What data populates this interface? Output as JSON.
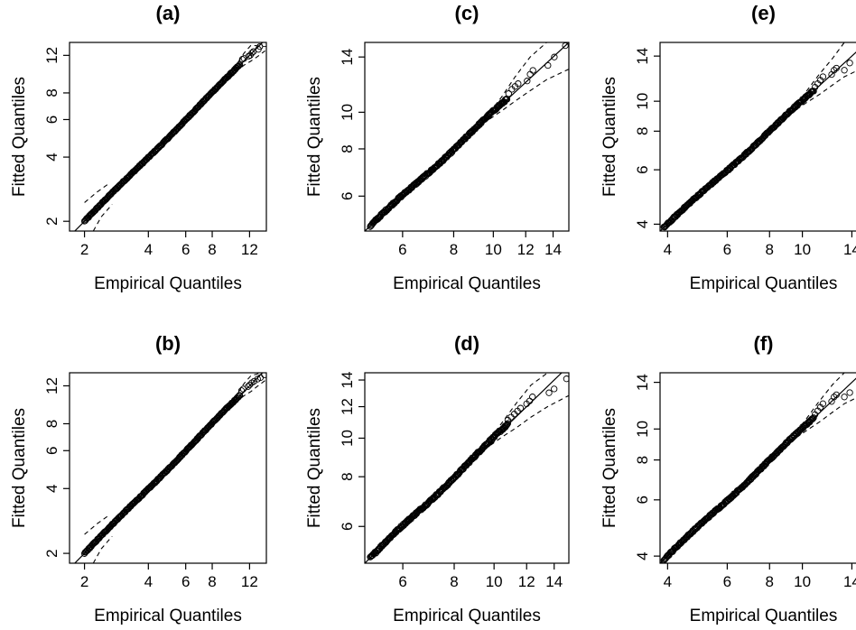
{
  "chart_data": [
    {
      "type": "scatter",
      "title": "(a)",
      "xlabel": "Empirical Quantiles",
      "ylabel": "Fitted Quantiles",
      "xlim": [
        1.7,
        14.4
      ],
      "ylim": [
        1.8,
        13.8
      ],
      "xticks": [
        2,
        4,
        6,
        8,
        12
      ],
      "yticks": [
        2,
        4,
        6,
        8,
        12
      ],
      "x_log_scale": true,
      "y_log_scale": true,
      "grid": false,
      "x_min": 2.0,
      "x_max": 14.1,
      "upper_band": [
        [
          9.6,
          9.7
        ],
        [
          10.5,
          11.0
        ],
        [
          11.3,
          12.3
        ],
        [
          12.2,
          13.4
        ],
        [
          13.0,
          13.3
        ],
        [
          14.2,
          14.2
        ]
      ],
      "lower_band": [
        [
          9.6,
          9.5
        ],
        [
          10.5,
          10.2
        ],
        [
          11.3,
          10.8
        ],
        [
          12.2,
          11.3
        ],
        [
          13.0,
          11.8
        ],
        [
          14.2,
          12.6
        ]
      ],
      "low_band_upper": [
        [
          2.0,
          2.45
        ],
        [
          2.3,
          2.75
        ],
        [
          2.6,
          3.0
        ]
      ],
      "low_band_lower": [
        [
          2.2,
          1.8
        ],
        [
          2.4,
          2.1
        ],
        [
          2.7,
          2.4
        ]
      ],
      "high_points": [
        [
          11.1,
          11.5
        ],
        [
          11.3,
          11.6
        ],
        [
          11.9,
          11.9
        ],
        [
          12.1,
          12.0
        ],
        [
          12.3,
          12.3
        ],
        [
          12.5,
          12.5
        ],
        [
          13.2,
          12.8
        ],
        [
          13.4,
          13.2
        ],
        [
          14.1,
          13.6
        ]
      ]
    },
    {
      "type": "scatter",
      "title": "(b)",
      "xlabel": "Empirical Quantiles",
      "ylabel": "Fitted Quantiles",
      "xlim": [
        1.7,
        14.4
      ],
      "ylim": [
        1.8,
        13.8
      ],
      "xticks": [
        2,
        4,
        6,
        8,
        12
      ],
      "yticks": [
        2,
        4,
        6,
        8,
        12
      ],
      "x_log_scale": true,
      "y_log_scale": true,
      "grid": false,
      "x_min": 2.0,
      "x_max": 14.1,
      "upper_band": [
        [
          9.6,
          9.7
        ],
        [
          10.5,
          11.0
        ],
        [
          11.3,
          12.3
        ],
        [
          12.2,
          13.4
        ],
        [
          13.0,
          13.6
        ],
        [
          14.2,
          14.2
        ]
      ],
      "lower_band": [
        [
          9.6,
          9.5
        ],
        [
          10.5,
          10.2
        ],
        [
          11.3,
          10.8
        ],
        [
          12.2,
          11.3
        ],
        [
          13.0,
          11.9
        ],
        [
          14.2,
          12.7
        ]
      ],
      "low_band_upper": [
        [
          2.0,
          2.45
        ],
        [
          2.3,
          2.75
        ],
        [
          2.6,
          3.0
        ]
      ],
      "low_band_lower": [
        [
          2.2,
          1.8
        ],
        [
          2.4,
          2.1
        ],
        [
          2.7,
          2.4
        ]
      ],
      "high_points": [
        [
          11.0,
          11.4
        ],
        [
          11.2,
          11.6
        ],
        [
          11.8,
          11.9
        ],
        [
          12.0,
          12.1
        ],
        [
          12.3,
          12.4
        ],
        [
          12.6,
          12.6
        ],
        [
          13.1,
          12.9
        ],
        [
          13.5,
          13.1
        ],
        [
          14.1,
          13.5
        ]
      ]
    },
    {
      "type": "scatter",
      "title": "(c)",
      "xlabel": "Empirical Quantiles",
      "ylabel": "Fitted Quantiles",
      "xlim": [
        4.85,
        15.3
      ],
      "ylim": [
        4.85,
        15.3
      ],
      "xticks": [
        6,
        8,
        10,
        12,
        14
      ],
      "yticks": [
        6,
        8,
        10,
        14
      ],
      "x_log_scale": true,
      "y_log_scale": true,
      "grid": false,
      "x_min": 5.0,
      "x_max": 15.0,
      "upper_band": [
        [
          9.8,
          10.0
        ],
        [
          10.5,
          11.0
        ],
        [
          11.3,
          12.4
        ],
        [
          12.3,
          14.0
        ],
        [
          13.5,
          15.3
        ],
        [
          15.3,
          15.3
        ]
      ],
      "lower_band": [
        [
          9.8,
          9.6
        ],
        [
          10.5,
          10.1
        ],
        [
          11.3,
          10.7
        ],
        [
          12.3,
          11.4
        ],
        [
          13.5,
          12.2
        ],
        [
          15.3,
          13.0
        ]
      ],
      "high_points": [
        [
          10.9,
          11.2
        ],
        [
          11.1,
          11.5
        ],
        [
          11.3,
          11.7
        ],
        [
          11.5,
          11.9
        ],
        [
          12.1,
          12.1
        ],
        [
          12.3,
          12.6
        ],
        [
          12.5,
          12.9
        ],
        [
          13.6,
          13.3
        ],
        [
          14.1,
          14.0
        ],
        [
          15.0,
          15.0
        ]
      ]
    },
    {
      "type": "scatter",
      "title": "(d)",
      "xlabel": "Empirical Quantiles",
      "ylabel": "Fitted Quantiles",
      "xlim": [
        4.85,
        15.2
      ],
      "ylim": [
        4.85,
        14.6
      ],
      "xticks": [
        6,
        8,
        10,
        12,
        14
      ],
      "yticks": [
        6,
        8,
        10,
        12,
        14
      ],
      "x_log_scale": true,
      "y_log_scale": true,
      "grid": false,
      "x_min": 5.0,
      "x_max": 15.0,
      "upper_band": [
        [
          9.8,
          10.0
        ],
        [
          10.5,
          11.0
        ],
        [
          11.3,
          12.2
        ],
        [
          12.3,
          13.6
        ],
        [
          13.5,
          14.6
        ],
        [
          15.2,
          14.6
        ]
      ],
      "lower_band": [
        [
          9.8,
          9.6
        ],
        [
          10.5,
          10.1
        ],
        [
          11.3,
          10.6
        ],
        [
          12.3,
          11.3
        ],
        [
          13.5,
          12.0
        ],
        [
          15.2,
          12.8
        ]
      ],
      "high_points": [
        [
          10.8,
          11.1
        ],
        [
          11.0,
          11.3
        ],
        [
          11.2,
          11.5
        ],
        [
          11.4,
          11.7
        ],
        [
          11.6,
          11.9
        ],
        [
          12.0,
          12.2
        ],
        [
          12.2,
          12.4
        ],
        [
          12.4,
          12.7
        ],
        [
          13.6,
          13.0
        ],
        [
          14.0,
          13.3
        ],
        [
          15.0,
          14.1
        ]
      ]
    },
    {
      "type": "scatter",
      "title": "(e)",
      "xlabel": "Empirical Quantiles",
      "ylabel": "Fitted Quantiles",
      "xlim": [
        3.8,
        15.5
      ],
      "ylim": [
        3.8,
        15.5
      ],
      "xticks": [
        4,
        6,
        8,
        10,
        14
      ],
      "yticks": [
        4,
        6,
        8,
        10,
        14
      ],
      "x_log_scale": true,
      "y_log_scale": true,
      "grid": false,
      "x_min": 3.9,
      "x_max": 15.3,
      "upper_band": [
        [
          9.6,
          9.8
        ],
        [
          10.3,
          10.8
        ],
        [
          11.2,
          12.2
        ],
        [
          12.3,
          13.8
        ],
        [
          13.3,
          15.5
        ],
        [
          15.5,
          15.5
        ]
      ],
      "lower_band": [
        [
          9.6,
          9.4
        ],
        [
          10.3,
          9.9
        ],
        [
          11.2,
          10.5
        ],
        [
          12.3,
          11.3
        ],
        [
          13.3,
          12.0
        ],
        [
          15.5,
          13.0
        ]
      ],
      "high_points": [
        [
          10.9,
          11.1
        ],
        [
          11.1,
          11.4
        ],
        [
          11.3,
          11.7
        ],
        [
          11.5,
          12.0
        ],
        [
          12.2,
          12.2
        ],
        [
          12.4,
          12.6
        ],
        [
          12.6,
          12.8
        ],
        [
          13.3,
          12.6
        ],
        [
          13.8,
          13.3
        ],
        [
          15.0,
          14.4
        ]
      ]
    },
    {
      "type": "scatter",
      "title": "(f)",
      "xlabel": "Empirical Quantiles",
      "ylabel": "Fitted Quantiles",
      "xlim": [
        3.8,
        15.5
      ],
      "ylim": [
        3.8,
        15.0
      ],
      "xticks": [
        4,
        6,
        8,
        10,
        14
      ],
      "yticks": [
        4,
        6,
        8,
        10,
        14
      ],
      "x_log_scale": true,
      "y_log_scale": true,
      "grid": false,
      "x_min": 3.9,
      "x_max": 15.3,
      "upper_band": [
        [
          9.6,
          9.8
        ],
        [
          10.3,
          10.8
        ],
        [
          11.2,
          12.2
        ],
        [
          12.3,
          13.8
        ],
        [
          13.3,
          15.0
        ],
        [
          15.5,
          15.0
        ]
      ],
      "lower_band": [
        [
          9.6,
          9.4
        ],
        [
          10.3,
          9.9
        ],
        [
          11.2,
          10.5
        ],
        [
          12.3,
          11.3
        ],
        [
          13.3,
          12.0
        ],
        [
          15.5,
          13.0
        ]
      ],
      "high_points": [
        [
          10.9,
          11.1
        ],
        [
          11.1,
          11.4
        ],
        [
          11.3,
          11.7
        ],
        [
          11.5,
          12.0
        ],
        [
          12.2,
          12.2
        ],
        [
          12.4,
          12.6
        ],
        [
          12.6,
          12.8
        ],
        [
          13.3,
          12.6
        ],
        [
          13.8,
          13.0
        ],
        [
          15.0,
          13.8
        ]
      ]
    }
  ]
}
